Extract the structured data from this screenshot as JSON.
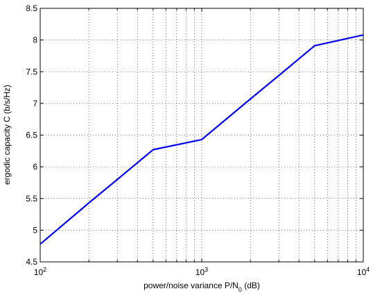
{
  "chart_data": {
    "type": "line",
    "xscale": "log",
    "xlabel": {
      "main": "power/noise variance P/N",
      "sub": "0",
      "suffix": " (dB)"
    },
    "ylabel": "ergodic capacity C (b/s/Hz)",
    "xlim": [
      100,
      10000
    ],
    "ylim": [
      4.5,
      8.5
    ],
    "grid": true,
    "x_ticks": [
      {
        "value": 100,
        "base": "10",
        "exp": "2"
      },
      {
        "value": 1000,
        "base": "10",
        "exp": "3"
      },
      {
        "value": 10000,
        "base": "10",
        "exp": "4"
      }
    ],
    "y_ticks": [
      "4.5",
      "5",
      "5.5",
      "6",
      "6.5",
      "7",
      "7.5",
      "8",
      "8.5"
    ],
    "series": [
      {
        "color": "#0000ff",
        "x": [
          100,
          200,
          300,
          500,
          1000,
          2000,
          3000,
          5000,
          10000
        ],
        "y": [
          4.78,
          5.43,
          5.8,
          6.27,
          6.43,
          7.07,
          7.44,
          7.91,
          8.08
        ]
      }
    ]
  }
}
